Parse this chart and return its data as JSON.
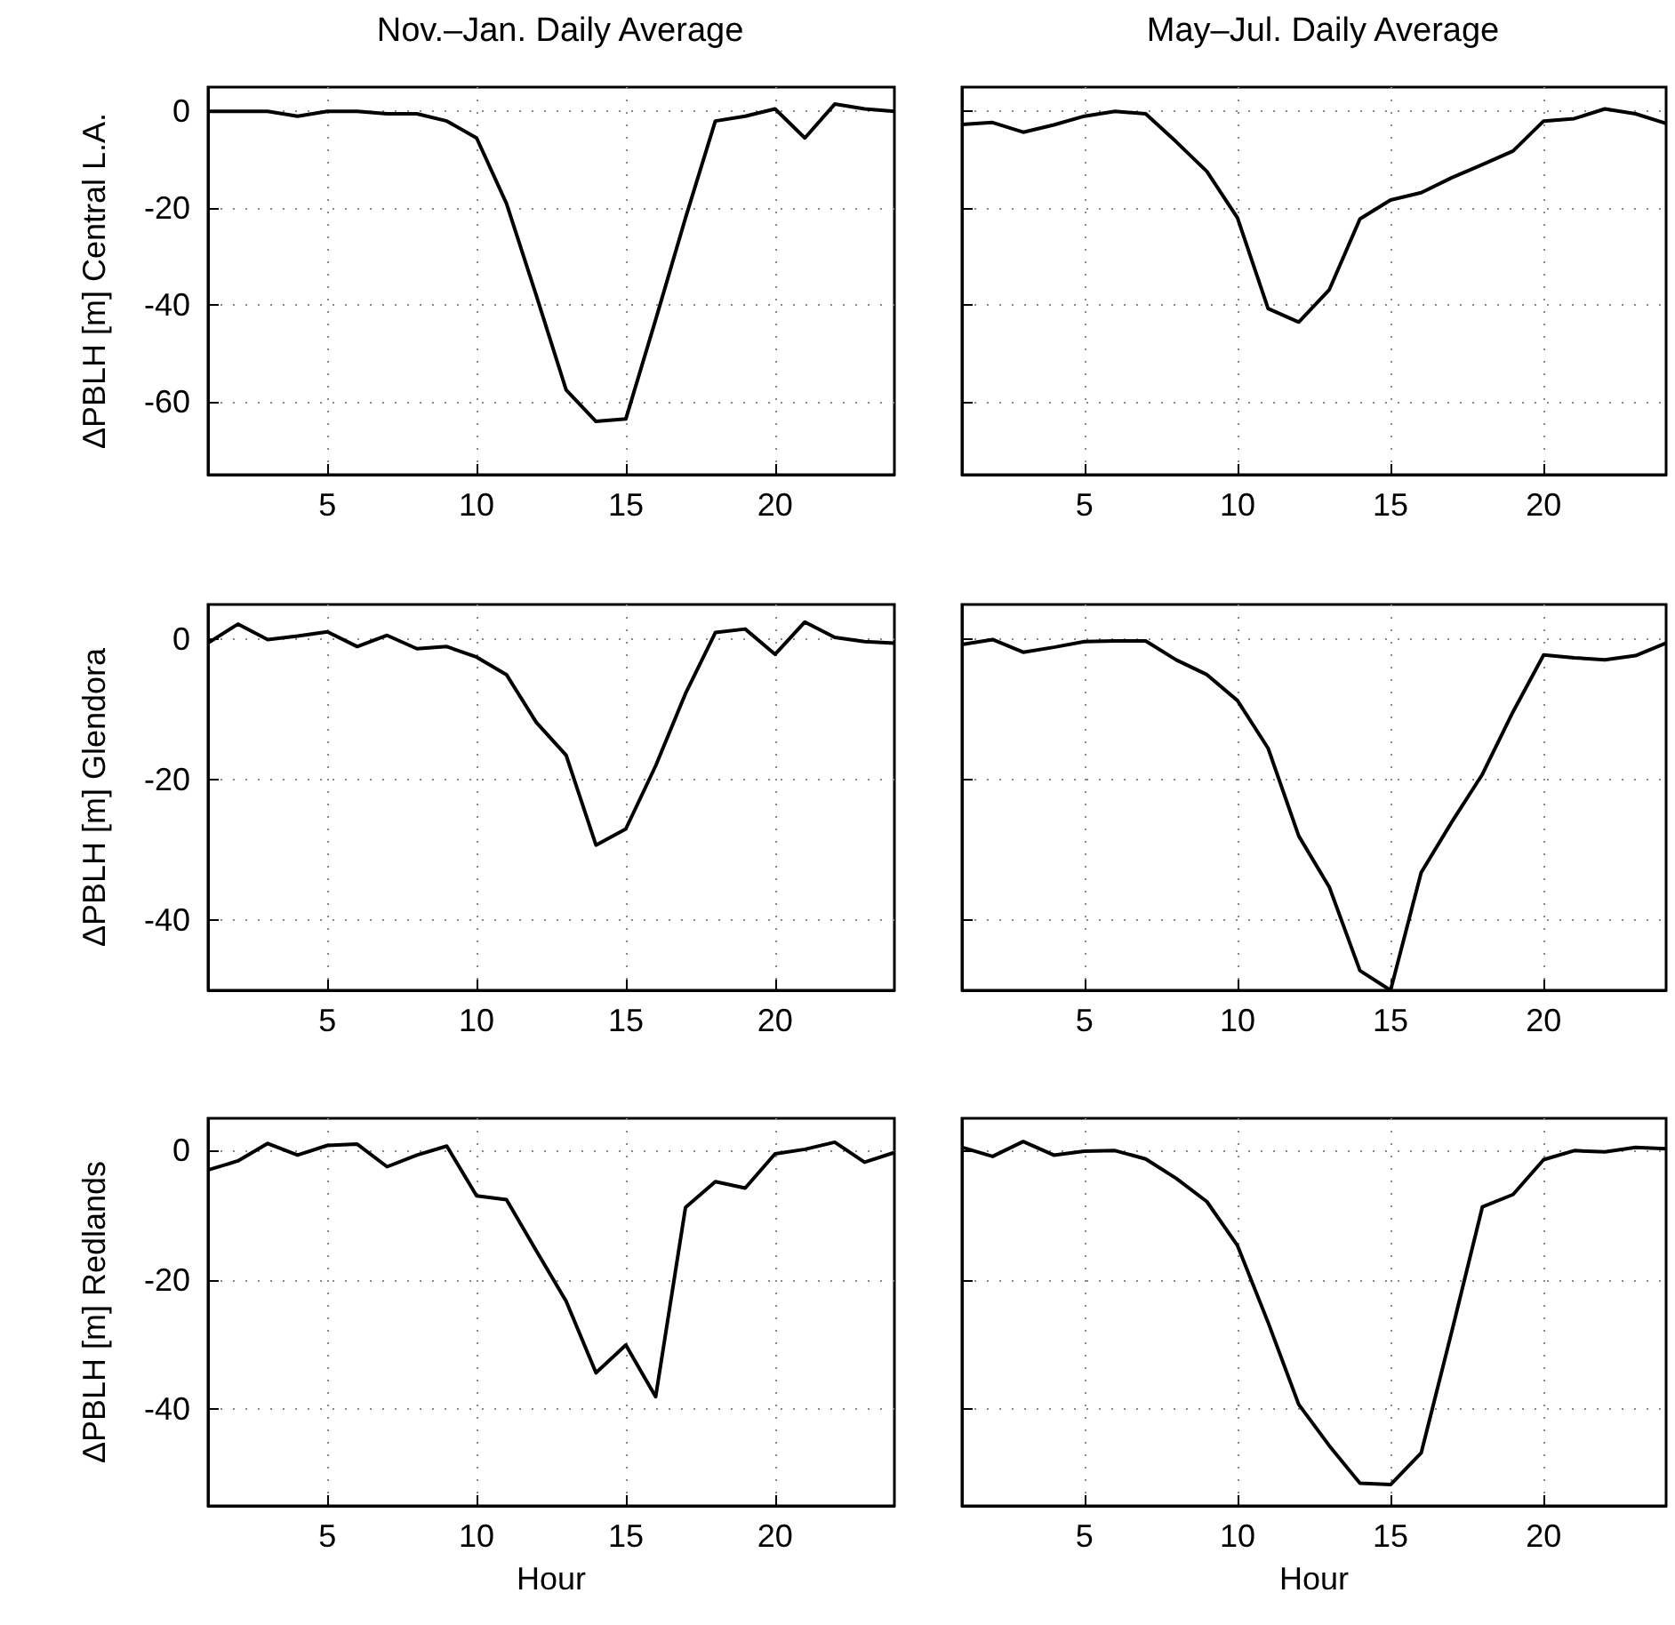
{
  "chart_data": [
    {
      "type": "line",
      "title": "Nov.–Jan. Daily Average",
      "ylabel": "ΔPBLH [m] Central L.A.",
      "x": [
        1,
        2,
        3,
        4,
        5,
        6,
        7,
        8,
        9,
        10,
        11,
        12,
        13,
        14,
        15,
        16,
        17,
        18,
        19,
        20,
        21,
        22,
        23,
        24
      ],
      "xlim": [
        1,
        24
      ],
      "xticks": [
        5,
        10,
        15,
        20
      ],
      "ylim": [
        -75,
        5
      ],
      "yticks": [
        -60,
        -40,
        -20,
        0
      ],
      "grid": true,
      "marker": "none",
      "line_style": "solid",
      "series": [
        {
          "color": "#000000",
          "values": [
            0,
            0,
            0,
            -1,
            0,
            0,
            -0.5,
            -0.5,
            -2,
            -5.5,
            -19,
            -38,
            -57.5,
            -64,
            -63.5,
            -43,
            -22,
            -2,
            -1,
            0.5,
            -5.5,
            1.5,
            0.5,
            0
          ]
        }
      ]
    },
    {
      "type": "line",
      "title": "May–Jul. Daily Average",
      "x": [
        1,
        2,
        3,
        4,
        5,
        6,
        7,
        8,
        9,
        10,
        11,
        12,
        13,
        14,
        15,
        16,
        17,
        18,
        19,
        20,
        21,
        22,
        23,
        24
      ],
      "xlim": [
        1,
        24
      ],
      "xticks": [
        5,
        10,
        15,
        20
      ],
      "ylim": [
        -75,
        5
      ],
      "yticks": [
        -60,
        -40,
        -20,
        0
      ],
      "grid": true,
      "tick_labels": "x",
      "marker": "none",
      "line_style": "solid",
      "series": [
        {
          "color": "#000000",
          "values": [
            -2.7,
            -2.3,
            -4.3,
            -2.8,
            -1,
            0,
            -0.5,
            -6.3,
            -12.4,
            -22,
            -40.7,
            -43.5,
            -36.8,
            -22.2,
            -18.3,
            -16.8,
            -13.7,
            -11,
            -8.2,
            -2,
            -1.5,
            0.5,
            -0.5,
            -2.5
          ]
        }
      ]
    },
    {
      "type": "line",
      "ylabel": "ΔPBLH [m] Glendora",
      "x": [
        1,
        2,
        3,
        4,
        5,
        6,
        7,
        8,
        9,
        10,
        11,
        12,
        13,
        14,
        15,
        16,
        17,
        18,
        19,
        20,
        21,
        22,
        23,
        24
      ],
      "xlim": [
        1,
        24
      ],
      "xticks": [
        5,
        10,
        15,
        20
      ],
      "ylim": [
        -50,
        5
      ],
      "yticks": [
        -40,
        -20,
        0
      ],
      "grid": true,
      "marker": "none",
      "line_style": "solid",
      "series": [
        {
          "color": "#000000",
          "values": [
            -0.5,
            2.2,
            0,
            0.5,
            1.1,
            -1,
            0.6,
            -1.3,
            -1,
            -2.5,
            -5,
            -11.8,
            -16.5,
            -29.3,
            -27,
            -18,
            -7.7,
            1,
            1.5,
            -2.1,
            2.5,
            0.3,
            -0.3,
            -0.5
          ]
        }
      ]
    },
    {
      "type": "line",
      "x": [
        1,
        2,
        3,
        4,
        5,
        6,
        7,
        8,
        9,
        10,
        11,
        12,
        13,
        14,
        15,
        16,
        17,
        18,
        19,
        20,
        21,
        22,
        23,
        24
      ],
      "xlim": [
        1,
        24
      ],
      "xticks": [
        5,
        10,
        15,
        20
      ],
      "ylim": [
        -50,
        5
      ],
      "yticks": [
        -40,
        -20,
        0
      ],
      "grid": true,
      "tick_labels": "x",
      "marker": "none",
      "line_style": "solid",
      "series": [
        {
          "color": "#000000",
          "values": [
            -0.7,
            0,
            -1.8,
            -1.1,
            -0.3,
            -0.2,
            -0.2,
            -2.9,
            -5,
            -8.7,
            -15.5,
            -28,
            -35.3,
            -47.2,
            -50,
            -33.2,
            -26,
            -19.2,
            -10.3,
            -2.2,
            -2.6,
            -2.9,
            -2.3,
            -0.5
          ]
        }
      ]
    },
    {
      "type": "line",
      "xlabel": "Hour",
      "ylabel": "ΔPBLH [m] Redlands",
      "x": [
        1,
        2,
        3,
        4,
        5,
        6,
        7,
        8,
        9,
        10,
        11,
        12,
        13,
        14,
        15,
        16,
        17,
        18,
        19,
        20,
        21,
        22,
        23,
        24
      ],
      "xlim": [
        1,
        24
      ],
      "xticks": [
        5,
        10,
        15,
        20
      ],
      "ylim": [
        -55,
        5
      ],
      "yticks": [
        -40,
        -20,
        0
      ],
      "grid": true,
      "marker": "none",
      "line_style": "solid",
      "series": [
        {
          "color": "#000000",
          "values": [
            -3,
            -1.6,
            1.1,
            -0.7,
            0.8,
            1,
            -2.5,
            -0.7,
            0.7,
            -7,
            -7.6,
            -15.5,
            -23.3,
            -34.4,
            -30.1,
            -38.1,
            -8.8,
            -4.8,
            -5.8,
            -0.5,
            0.2,
            1.3,
            -1.8,
            -0.3
          ]
        }
      ]
    },
    {
      "type": "line",
      "xlabel": "Hour",
      "x": [
        1,
        2,
        3,
        4,
        5,
        6,
        7,
        8,
        9,
        10,
        11,
        12,
        13,
        14,
        15,
        16,
        17,
        18,
        19,
        20,
        21,
        22,
        23,
        24
      ],
      "xlim": [
        1,
        24
      ],
      "xticks": [
        5,
        10,
        15,
        20
      ],
      "ylim": [
        -55,
        5
      ],
      "yticks": [
        -40,
        -20,
        0
      ],
      "grid": true,
      "tick_labels": "x",
      "marker": "none",
      "line_style": "solid",
      "series": [
        {
          "color": "#000000",
          "values": [
            0.5,
            -0.9,
            1.4,
            -0.7,
            -0.1,
            0,
            -1.3,
            -4.3,
            -7.9,
            -14.7,
            -26.6,
            -39.3,
            -45.7,
            -51.5,
            -51.7,
            -46.8,
            -28,
            -8.7,
            -6.8,
            -1.4,
            0,
            -0.2,
            0.5,
            0.3
          ]
        }
      ]
    }
  ]
}
